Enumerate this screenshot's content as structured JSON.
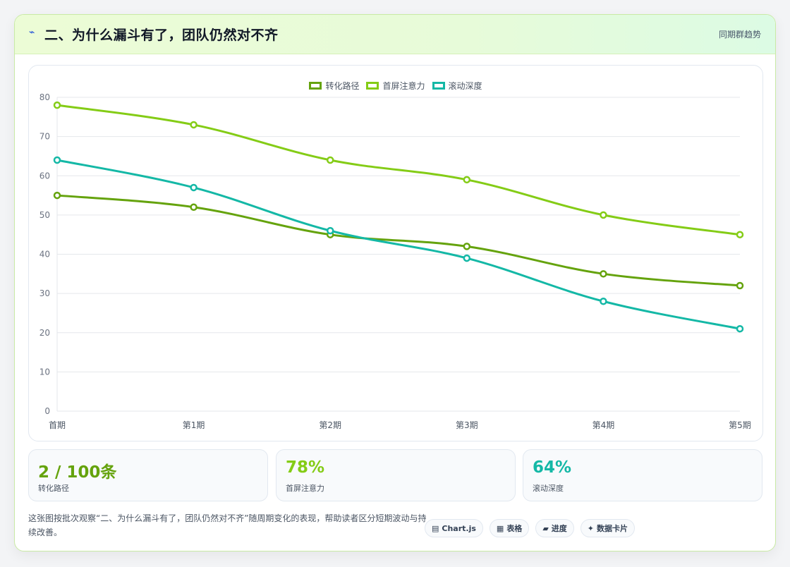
{
  "header": {
    "icon": "⌁",
    "title": "二、为什么漏斗有了，团队仍然对不齐",
    "link": "同期群趋势"
  },
  "chart_data": {
    "type": "line",
    "categories": [
      "首期",
      "第1期",
      "第2期",
      "第3期",
      "第4期",
      "第5期"
    ],
    "series": [
      {
        "name": "转化路径",
        "color": "#65a30d",
        "values": [
          55,
          52,
          45,
          42,
          35,
          32
        ]
      },
      {
        "name": "首屏注意力",
        "color": "#84cc16",
        "values": [
          78,
          73,
          64,
          59,
          50,
          45
        ]
      },
      {
        "name": "滚动深度",
        "color": "#14b8a6",
        "values": [
          64,
          57,
          46,
          39,
          28,
          21
        ]
      }
    ],
    "ylim": [
      0,
      80
    ],
    "yticks": [
      0,
      10,
      20,
      30,
      40,
      50,
      60,
      70,
      80
    ],
    "legend": "top-center",
    "grid": true
  },
  "kpis": [
    {
      "value": "2 / 100条",
      "label": "转化路径",
      "color": "#65a30d"
    },
    {
      "value": "78%",
      "label": "首屏注意力",
      "color": "#84cc16"
    },
    {
      "value": "64%",
      "label": "滚动深度",
      "color": "#14b8a6"
    }
  ],
  "footer": {
    "description": "这张图按批次观察“二、为什么漏斗有了，团队仍然对不齐”随周期变化的表现，帮助读者区分短期波动与持续改善。",
    "tags": [
      {
        "icon": "▤",
        "icon_name": "chart-icon",
        "label": "Chart.js"
      },
      {
        "icon": "▦",
        "icon_name": "table-icon",
        "label": "表格"
      },
      {
        "icon": "▰",
        "icon_name": "progress-icon",
        "label": "进度"
      },
      {
        "icon": "✦",
        "icon_name": "sparkle-icon",
        "label": "数据卡片"
      }
    ]
  }
}
